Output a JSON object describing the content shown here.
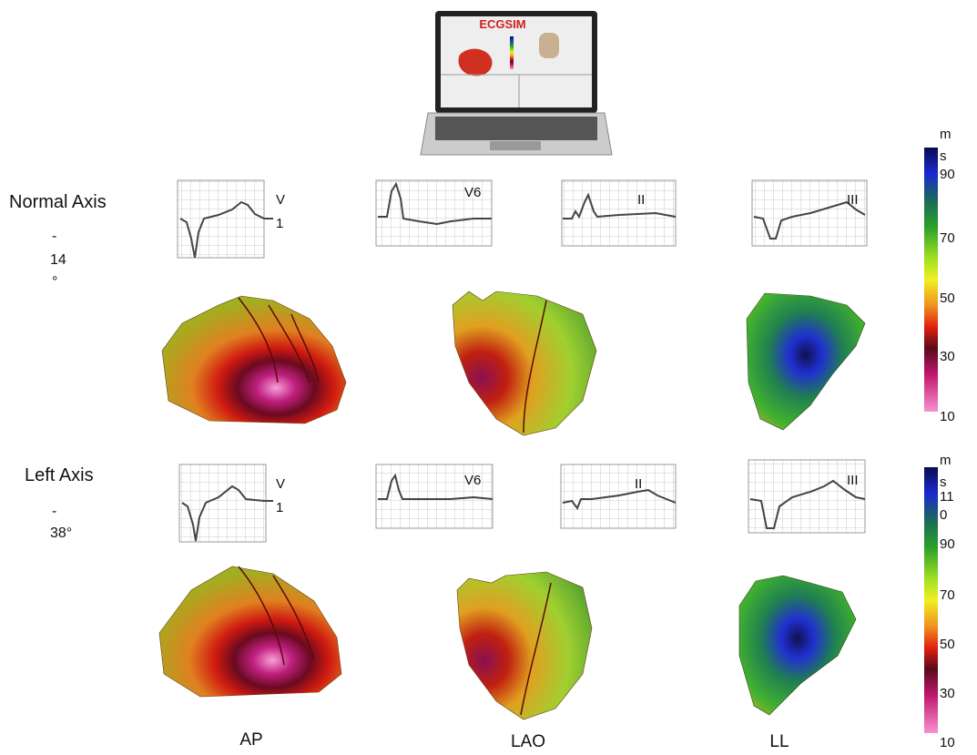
{
  "laptop": {
    "screen_title": "ECGSIM"
  },
  "rows": [
    {
      "name": "Normal Axis",
      "axis_lines": [
        "-",
        "14",
        "°"
      ],
      "leads": [
        {
          "lines": [
            "V",
            "1"
          ]
        },
        {
          "lines": [
            "V6"
          ]
        },
        {
          "lines": [
            "II"
          ]
        },
        {
          "lines": [
            "III"
          ]
        }
      ],
      "colorbar": {
        "unit_lines": [
          "m",
          "s"
        ],
        "ticks": [
          [
            "90"
          ],
          [
            "70"
          ],
          [
            "50"
          ],
          [
            "30"
          ],
          [
            "10"
          ]
        ]
      }
    },
    {
      "name": "Left Axis",
      "axis_lines": [
        "-",
        "38°"
      ],
      "leads": [
        {
          "lines": [
            "V",
            "1"
          ]
        },
        {
          "lines": [
            "V6"
          ]
        },
        {
          "lines": [
            "II"
          ]
        },
        {
          "lines": [
            "III"
          ]
        }
      ],
      "colorbar": {
        "unit_lines": [
          "m",
          "s"
        ],
        "ticks": [
          [
            "11",
            "0"
          ],
          [
            "90"
          ],
          [
            "70"
          ],
          [
            "50"
          ],
          [
            "30"
          ],
          [
            "10"
          ]
        ]
      }
    }
  ],
  "views": [
    "AP",
    "LAO",
    "LL"
  ]
}
